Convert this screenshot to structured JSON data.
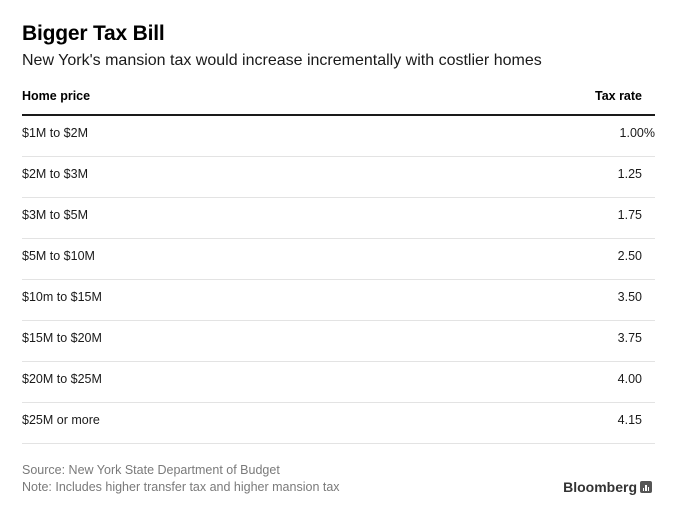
{
  "title": "Bigger Tax Bill",
  "subtitle": "New York's mansion tax would increase incrementally with costlier homes",
  "chart_data": {
    "type": "table",
    "title": "Bigger Tax Bill",
    "subtitle": "New York's mansion tax would increase incrementally with costlier homes",
    "columns": [
      "Home price",
      "Tax rate"
    ],
    "rows": [
      [
        "$1M to $2M",
        "1.00%"
      ],
      [
        "$2M to $3M",
        "1.25"
      ],
      [
        "$3M to $5M",
        "1.75"
      ],
      [
        "$5M to $10M",
        "2.50"
      ],
      [
        "$10m to $15M",
        "3.50"
      ],
      [
        "$15M to $20M",
        "3.75"
      ],
      [
        "$20M to $25M",
        "4.00"
      ],
      [
        "$25M or more",
        "4.15"
      ]
    ]
  },
  "footer": {
    "source": "Source: New York State Department of Budget",
    "note": "Note: Includes higher transfer tax and higher mansion tax"
  },
  "brand": {
    "name": "Bloomberg",
    "icon": "bar-chart-icon"
  }
}
